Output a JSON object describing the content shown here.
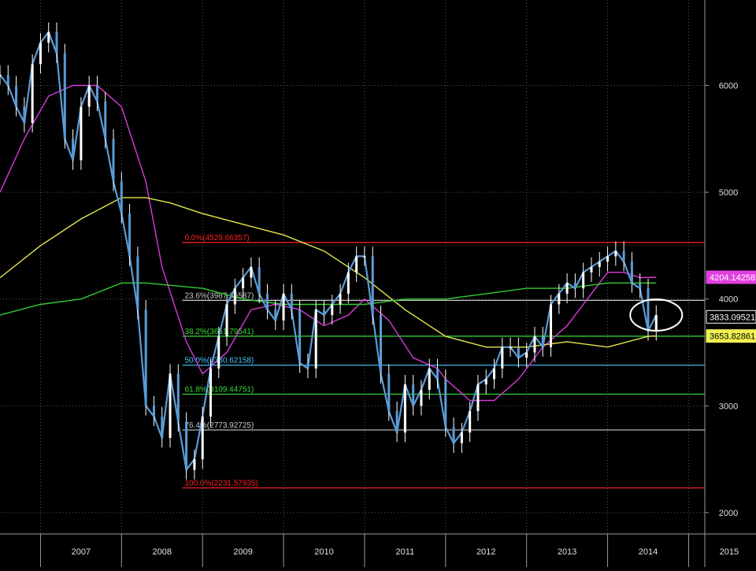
{
  "chart_data": {
    "type": "line",
    "title": "",
    "xlabel": "",
    "ylabel": "",
    "ylim": [
      1800,
      6800
    ],
    "xlim": [
      2006.5,
      2015.2
    ],
    "x_ticks": [
      "2007",
      "2008",
      "2009",
      "2010",
      "2011",
      "2012",
      "2013",
      "2014",
      "2015"
    ],
    "y_ticks": [
      "2000",
      "3000",
      "4000",
      "5000",
      "6000"
    ],
    "grid": true,
    "series": [
      {
        "name": "",
        "style": "candlestick",
        "color": "#5b9bd5",
        "x": [
          2006.5,
          2006.6,
          2006.7,
          2006.8,
          2006.9,
          2007.0,
          2007.1,
          2007.2,
          2007.3,
          2007.4,
          2007.5,
          2007.6,
          2007.7,
          2007.8,
          2007.9,
          2008.0,
          2008.1,
          2008.2,
          2008.3,
          2008.4,
          2008.5,
          2008.6,
          2008.7,
          2008.8,
          2008.9,
          2009.0,
          2009.1,
          2009.2,
          2009.3,
          2009.4,
          2009.5,
          2009.6,
          2009.7,
          2009.8,
          2009.9,
          2010.0,
          2010.1,
          2010.2,
          2010.3,
          2010.4,
          2010.5,
          2010.6,
          2010.7,
          2010.8,
          2010.9,
          2011.0,
          2011.1,
          2011.2,
          2011.3,
          2011.4,
          2011.5,
          2011.6,
          2011.7,
          2011.8,
          2011.9,
          2012.0,
          2012.1,
          2012.2,
          2012.3,
          2012.4,
          2012.5,
          2012.6,
          2012.7,
          2012.8,
          2012.9,
          2013.0,
          2013.1,
          2013.2,
          2013.3,
          2013.4,
          2013.5,
          2013.6,
          2013.7,
          2013.8,
          2013.9,
          2014.0,
          2014.1,
          2014.2,
          2014.3,
          2014.4,
          2014.5,
          2014.6
        ],
        "y": [
          6100,
          6000,
          5800,
          5650,
          6200,
          6400,
          6500,
          6300,
          5500,
          5300,
          5800,
          6000,
          5850,
          5500,
          5100,
          4800,
          4400,
          3900,
          3000,
          2900,
          2700,
          3300,
          2850,
          2400,
          2500,
          2900,
          3350,
          3650,
          3950,
          4100,
          4200,
          4300,
          4050,
          3900,
          3800,
          4050,
          3900,
          3400,
          3350,
          3900,
          3850,
          3950,
          4050,
          4250,
          4400,
          4400,
          3850,
          3300,
          2950,
          2750,
          3200,
          3000,
          3150,
          3350,
          3250,
          2800,
          2650,
          2750,
          2950,
          3200,
          3250,
          3350,
          3550,
          3550,
          3450,
          3500,
          3650,
          3550,
          3950,
          4050,
          4150,
          4100,
          4250,
          4300,
          4350,
          4400,
          4450,
          4350,
          4150,
          4100,
          3700,
          3850
        ]
      },
      {
        "name": "",
        "style": "line",
        "color": "#d93ad9",
        "x": [
          2006.5,
          2006.8,
          2007.1,
          2007.4,
          2007.7,
          2008.0,
          2008.3,
          2008.5,
          2008.8,
          2009.0,
          2009.3,
          2009.6,
          2009.9,
          2010.2,
          2010.5,
          2010.8,
          2011.0,
          2011.3,
          2011.6,
          2011.9,
          2012.0,
          2012.3,
          2012.6,
          2012.9,
          2013.2,
          2013.5,
          2013.8,
          2014.0,
          2014.2,
          2014.4,
          2014.6
        ],
        "y": [
          5000,
          5500,
          5900,
          6000,
          6000,
          5800,
          5100,
          4300,
          3600,
          3300,
          3500,
          3900,
          3950,
          3900,
          3750,
          3850,
          4000,
          3800,
          3450,
          3350,
          3250,
          3050,
          3050,
          3250,
          3550,
          3750,
          4050,
          4250,
          4250,
          4200,
          4204
        ]
      },
      {
        "name": "",
        "style": "line",
        "color": "#e6e64c",
        "x": [
          2006.5,
          2007.0,
          2007.5,
          2008.0,
          2008.3,
          2008.6,
          2009.0,
          2009.5,
          2010.0,
          2010.5,
          2011.0,
          2011.5,
          2012.0,
          2012.5,
          2013.0,
          2013.5,
          2014.0,
          2014.5,
          2014.6
        ],
        "y": [
          4200,
          4500,
          4750,
          4950,
          4950,
          4900,
          4800,
          4700,
          4600,
          4450,
          4200,
          3900,
          3650,
          3550,
          3550,
          3600,
          3550,
          3650,
          3654
        ]
      },
      {
        "name": "",
        "style": "line",
        "color": "#33cc33",
        "x": [
          2006.5,
          2007.0,
          2007.5,
          2008.0,
          2008.3,
          2009.0,
          2009.5,
          2010.0,
          2010.5,
          2011.0,
          2011.5,
          2012.0,
          2012.5,
          2013.0,
          2013.5,
          2014.0,
          2014.5,
          2014.6
        ],
        "y": [
          3850,
          3950,
          4000,
          4150,
          4150,
          4100,
          4000,
          3950,
          3950,
          3950,
          4000,
          4000,
          4050,
          4100,
          4100,
          4150,
          4150,
          4150
        ]
      }
    ],
    "fibonacci": [
      {
        "label": "0.0%(4529.66357)",
        "value": 4529.66357,
        "color": "#ff2020"
      },
      {
        "label": "23.6%(3987.35587)",
        "value": 3987.35587,
        "color": "#c8c8c8"
      },
      {
        "label": "38.2%(3651.79541)",
        "value": 3651.79541,
        "color": "#33dd33"
      },
      {
        "label": "50.0%(3380.62158)",
        "value": 3380.62158,
        "color": "#40c8ff"
      },
      {
        "label": "61.8%(3109.44751)",
        "value": 3109.44751,
        "color": "#33dd33"
      },
      {
        "label": "76.4%(2773.92725)",
        "value": 2773.92725,
        "color": "#c8c8c8"
      },
      {
        "label": "100.0%(2231.57935)",
        "value": 2231.57935,
        "color": "#ff2020"
      }
    ],
    "value_tags": [
      {
        "label": "4204.14258",
        "value": 4204.14258,
        "bg": "#e040e0",
        "fg": "#ffffff"
      },
      {
        "label": "3833.09521",
        "value": 3833.09521,
        "bg": "#000000",
        "fg": "#ffffff"
      },
      {
        "label": "3653.82861",
        "value": 3653.82861,
        "bg": "#f0f050",
        "fg": "#000000"
      }
    ],
    "annotation": {
      "type": "ellipse",
      "x": 2014.6,
      "y": 3850
    }
  }
}
